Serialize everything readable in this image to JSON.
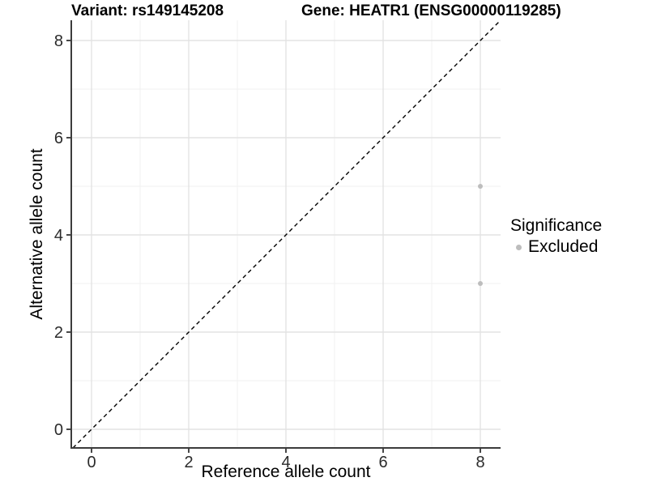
{
  "chart_data": {
    "type": "scatter",
    "title_left": "Variant: rs149145208",
    "title_right": "Gene: HEATR1 (ENSG00000119285)",
    "xlabel": "Reference allele count",
    "ylabel": "Alternative allele count",
    "xlim": [
      -0.42,
      8.42
    ],
    "ylim": [
      -0.38,
      8.42
    ],
    "x_major_ticks": [
      0,
      2,
      4,
      6,
      8
    ],
    "y_major_ticks": [
      0,
      2,
      4,
      6,
      8
    ],
    "x_minor_ticks": [
      1,
      3,
      5,
      7
    ],
    "y_minor_ticks": [
      1,
      3,
      5,
      7
    ],
    "grid": true,
    "points": [
      {
        "x": 8,
        "y": 5,
        "significance": "Excluded"
      },
      {
        "x": 8,
        "y": 3,
        "significance": "Excluded"
      }
    ],
    "reference_line": {
      "type": "identity",
      "slope": 1,
      "intercept": 0,
      "style": "dashed",
      "color": "#000000"
    },
    "legend": {
      "title": "Significance",
      "position": "right",
      "items": [
        {
          "label": "Excluded",
          "color": "#bdbdbd"
        }
      ]
    },
    "colors": {
      "point": "#bdbdbd",
      "grid_major": "#e3e3e3",
      "grid_minor": "#f0f0f0",
      "axis_line": "#3c3c3c",
      "tick_mark": "#333333",
      "tick_text": "#2b2b2b",
      "text": "#000000"
    }
  }
}
